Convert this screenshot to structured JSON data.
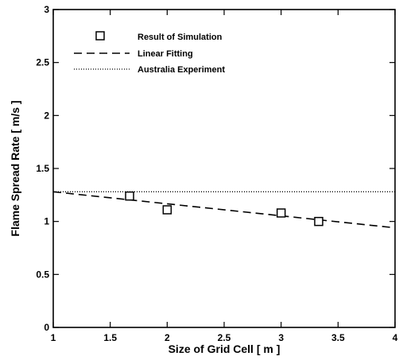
{
  "chart_data": {
    "type": "scatter",
    "xlabel": "Size of Grid Cell [  m  ]",
    "ylabel": "Flame Spread Rate [  m/s  ]",
    "xlim": [
      1,
      4
    ],
    "ylim": [
      0,
      3
    ],
    "x_ticks": [
      "1",
      "1.5",
      "2",
      "2.5",
      "3",
      "3.5",
      "4"
    ],
    "y_ticks": [
      "0",
      "0.5",
      "1",
      "1.5",
      "2",
      "2.5",
      "3"
    ],
    "grid": false,
    "legend_position": "top-left",
    "series": [
      {
        "name": "Result of Simulation",
        "kind": "marker",
        "marker": "open-square",
        "x": [
          1.67,
          2.0,
          3.0,
          3.33
        ],
        "y": [
          1.24,
          1.11,
          1.08,
          1.0
        ]
      },
      {
        "name": "Linear Fitting",
        "kind": "line",
        "style": "dashed",
        "x": [
          1.0,
          4.0
        ],
        "y": [
          1.28,
          0.94
        ]
      },
      {
        "name": "Australia Experiment",
        "kind": "line",
        "style": "dotted",
        "x": [
          1.0,
          4.0
        ],
        "y": [
          1.28,
          1.28
        ]
      }
    ]
  }
}
